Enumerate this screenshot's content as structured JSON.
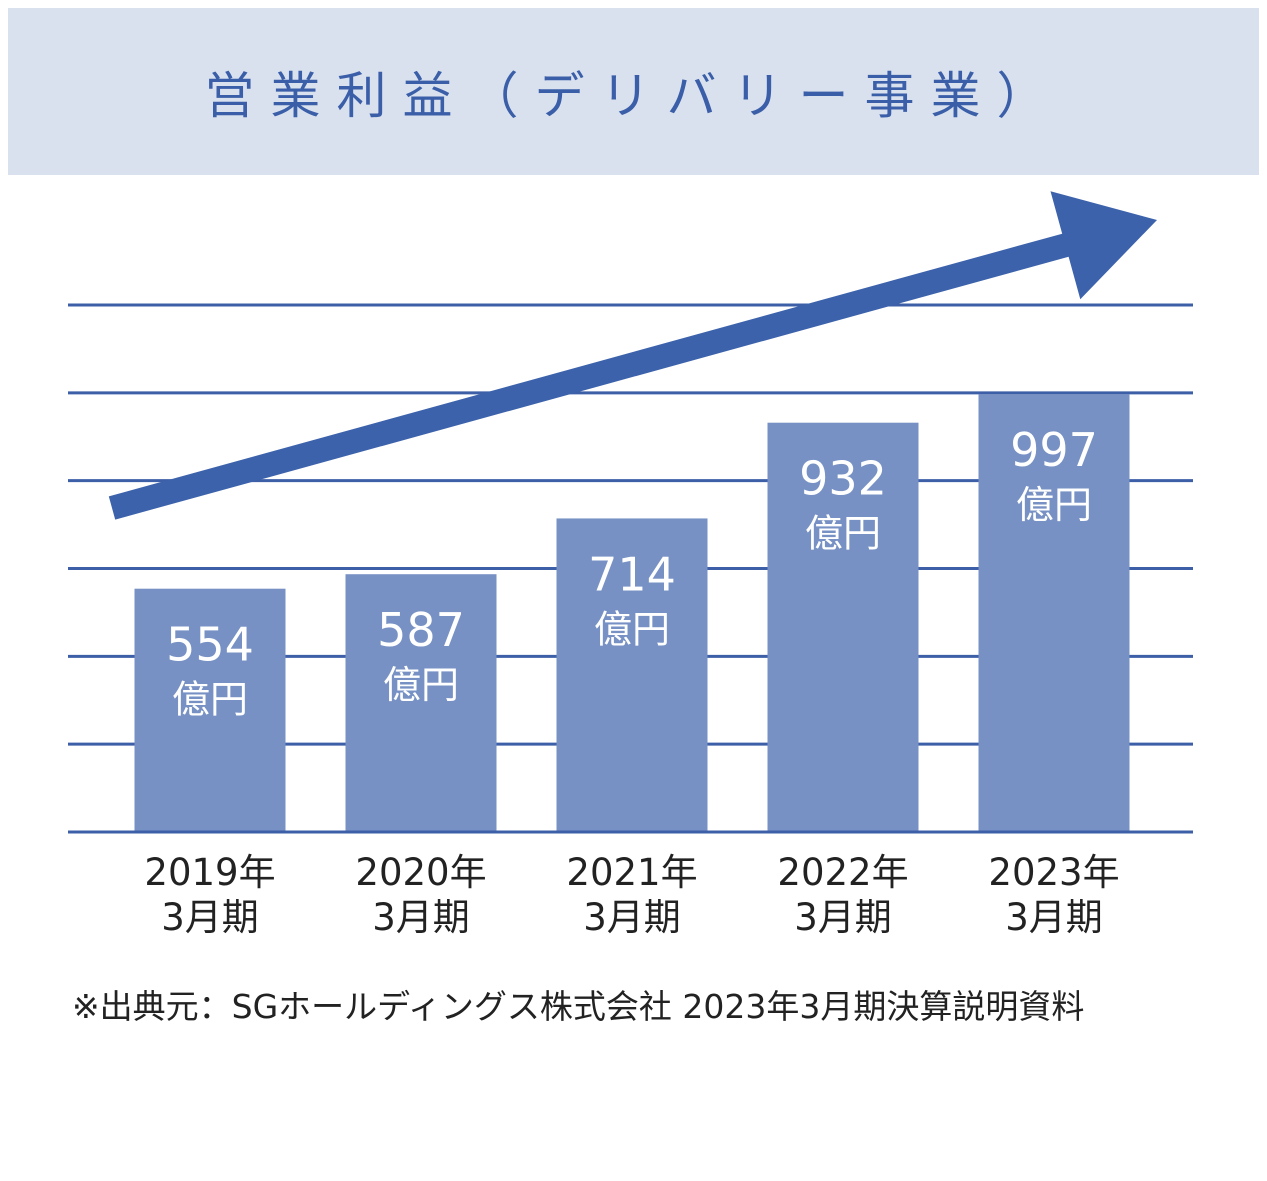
{
  "chart_data": {
    "type": "bar",
    "title": "営業利益（デリバリー事業）",
    "categories": [
      [
        "2019年",
        "3月期"
      ],
      [
        "2020年",
        "3月期"
      ],
      [
        "2021年",
        "3月期"
      ],
      [
        "2022年",
        "3月期"
      ],
      [
        "2023年",
        "3月期"
      ]
    ],
    "values": [
      554,
      587,
      714,
      932,
      997
    ],
    "unit_label": "億円",
    "ylim": [
      0,
      1200
    ],
    "grid": true,
    "trend_arrow": true,
    "colors": {
      "bar": "#7791c4",
      "grid": "#3d5fa8",
      "arrow": "#3c62ab",
      "title": "#3a5ea8",
      "title_bg": "#d9e1ee",
      "bar_text": "#ffffff",
      "tick_text": "#222222"
    }
  },
  "footnote": "※出典元：SGホールディングス株式会社 2023年3月期決算説明資料"
}
